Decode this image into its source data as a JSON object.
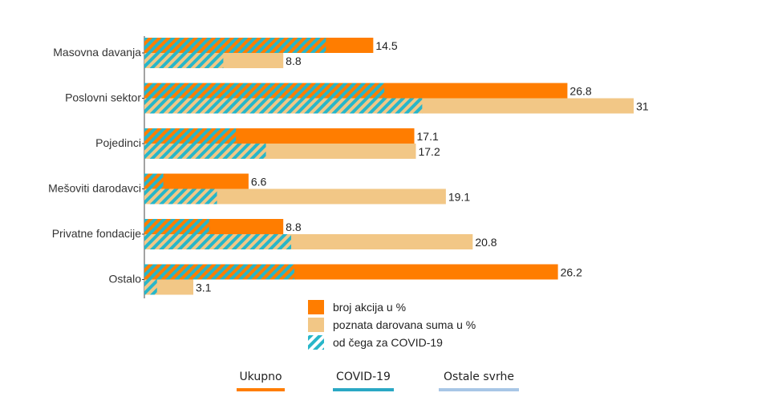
{
  "chart_data": {
    "type": "bar",
    "orientation": "horizontal",
    "categories": [
      "Masovna davanja",
      "Poslovni sektor",
      "Pojedinci",
      "Mešoviti darodavci",
      "Privatne fondacije",
      "Ostalo"
    ],
    "series": [
      {
        "name": "broj akcija u %",
        "values": [
          14.5,
          26.8,
          17.1,
          6.6,
          8.8,
          26.2
        ],
        "covid_values": [
          11.5,
          15.2,
          5.8,
          1.2,
          4.1,
          9.5
        ],
        "value_labels": [
          "14.5",
          "26.8",
          "17.1",
          "6.6",
          "8.8",
          "26.2"
        ]
      },
      {
        "name": "poznata darovana suma u %",
        "values": [
          8.8,
          31,
          17.2,
          19.1,
          20.8,
          3.1
        ],
        "covid_values": [
          5.0,
          17.6,
          7.7,
          4.6,
          9.3,
          0.8
        ],
        "value_labels": [
          "8.8",
          "31",
          "17.2",
          "19.1",
          "20.8",
          "3.1"
        ]
      }
    ],
    "covid_legend": "od čega za COVID-19",
    "xlim": [
      0,
      31
    ]
  },
  "colors": {
    "orange": "#ff7d00",
    "sand": "#f2c786",
    "teal": "#27b6c9",
    "orange_dark": "#c98a2a",
    "tab_covid": "#2aa8c4",
    "tab_ostale": "#a8c6e6"
  },
  "tabs": [
    {
      "label": "Ukupno",
      "color": "#ff7d00"
    },
    {
      "label": "COVID-19",
      "color": "#2aa8c4"
    },
    {
      "label": "Ostale svrhe",
      "color": "#a8c6e6"
    }
  ]
}
